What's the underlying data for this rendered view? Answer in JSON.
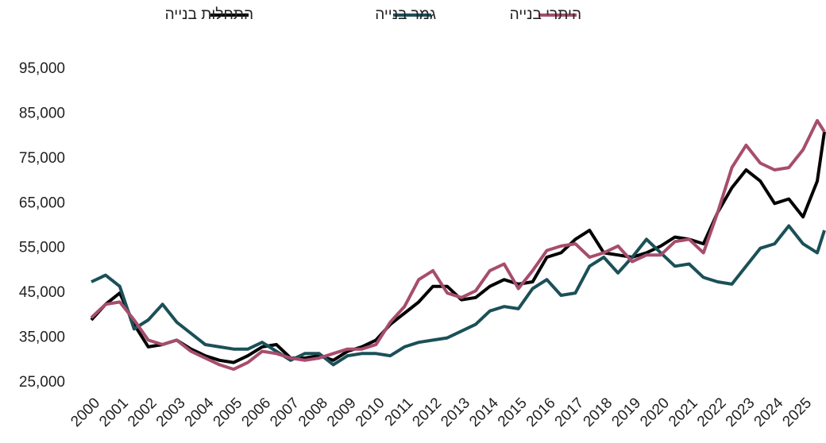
{
  "chart_data": {
    "type": "line",
    "x": [
      2000,
      2000.5,
      2001,
      2001.5,
      2002,
      2002.5,
      2003,
      2003.5,
      2004,
      2004.5,
      2005,
      2005.5,
      2006,
      2006.5,
      2007,
      2007.5,
      2008,
      2008.5,
      2009,
      2009.5,
      2010,
      2010.5,
      2011,
      2011.5,
      2012,
      2012.5,
      2013,
      2013.5,
      2014,
      2014.5,
      2015,
      2015.5,
      2016,
      2016.5,
      2017,
      2017.5,
      2018,
      2018.5,
      2019,
      2019.5,
      2020,
      2020.5,
      2021,
      2021.5,
      2022,
      2022.5,
      2023,
      2023.5,
      2024,
      2024.5,
      2025,
      2025.5,
      2025.75
    ],
    "series": [
      {
        "name": "התחלות בנייה",
        "color": "#000000",
        "values": [
          39000,
          42500,
          45000,
          38000,
          33000,
          33500,
          34500,
          32500,
          31000,
          30000,
          29500,
          31000,
          33000,
          33500,
          30500,
          30500,
          31000,
          30000,
          32000,
          33000,
          34500,
          38000,
          40500,
          43000,
          46500,
          46500,
          43500,
          44000,
          46500,
          48000,
          47000,
          47500,
          53000,
          54000,
          57000,
          59000,
          54000,
          53500,
          53000,
          54000,
          55500,
          57500,
          57000,
          56000,
          63000,
          68500,
          72500,
          70000,
          65000,
          66000,
          62000,
          70000,
          81000
        ]
      },
      {
        "name": "גמר בנייה",
        "color": "#1b5058",
        "values": [
          47500,
          49000,
          46500,
          37000,
          39000,
          42500,
          38500,
          36000,
          33500,
          33000,
          32500,
          32500,
          34000,
          32000,
          30000,
          31500,
          31500,
          29000,
          31000,
          31500,
          31500,
          31000,
          33000,
          34000,
          34500,
          35000,
          36500,
          38000,
          41000,
          42000,
          41500,
          46000,
          48000,
          44500,
          45000,
          51000,
          53000,
          49500,
          53000,
          57000,
          54000,
          51000,
          51500,
          48500,
          47500,
          47000,
          51000,
          55000,
          56000,
          60000,
          56000,
          54000,
          59000
        ]
      },
      {
        "name": "היתרי בנייה",
        "color": "#a64d6e",
        "values": [
          39500,
          42500,
          43000,
          39000,
          34500,
          33500,
          34500,
          32000,
          30500,
          29000,
          28000,
          29500,
          32000,
          31500,
          30500,
          30000,
          30500,
          31500,
          32500,
          32500,
          33500,
          38500,
          42000,
          48000,
          50000,
          45000,
          44000,
          45500,
          50000,
          51500,
          46000,
          50000,
          54500,
          55500,
          56000,
          53000,
          54000,
          55500,
          52000,
          53500,
          53500,
          56500,
          57000,
          54000,
          63000,
          73000,
          78000,
          74000,
          72500,
          73000,
          77000,
          83500,
          81000
        ]
      }
    ],
    "xlim": [
      2000,
      2025.75
    ],
    "xticks": [
      2000,
      2001,
      2002,
      2003,
      2004,
      2005,
      2006,
      2007,
      2008,
      2009,
      2010,
      2011,
      2012,
      2013,
      2014,
      2015,
      2016,
      2017,
      2018,
      2019,
      2020,
      2021,
      2022,
      2023,
      2024,
      2025
    ],
    "ylim": [
      25000,
      95000
    ],
    "yticks": [
      {
        "value": 25000,
        "label": "25,000"
      },
      {
        "value": 35000,
        "label": "35,000"
      },
      {
        "value": 45000,
        "label": "45,000"
      },
      {
        "value": 55000,
        "label": "55,000"
      },
      {
        "value": 65000,
        "label": "65,000"
      },
      {
        "value": 75000,
        "label": "75,000"
      },
      {
        "value": 85000,
        "label": "85,000"
      },
      {
        "value": 95000,
        "label": "95,000"
      }
    ],
    "legend": "top"
  }
}
